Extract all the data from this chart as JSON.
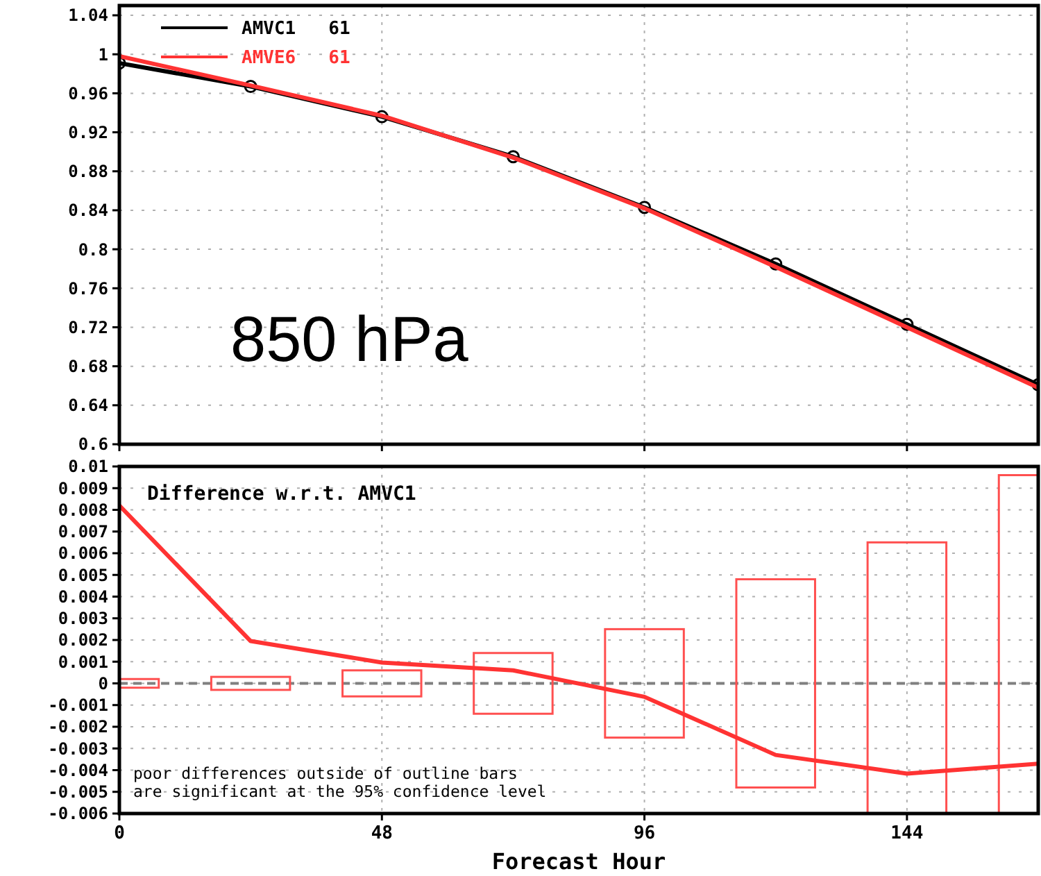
{
  "chart_data": [
    {
      "type": "line",
      "x": [
        0,
        24,
        48,
        72,
        96,
        120,
        144,
        168
      ],
      "xlim": [
        0,
        168
      ],
      "xticks": [
        0,
        48,
        96,
        144
      ],
      "tick_labels": "y",
      "ylim": [
        0.6,
        1.05
      ],
      "yticks": [
        0.6,
        0.64,
        0.68,
        0.72,
        0.76,
        0.8,
        0.84,
        0.88,
        0.92,
        0.96,
        1,
        1.04
      ],
      "grid": true,
      "legend": "top left",
      "line_style": "solid",
      "series": [
        {
          "name": "AMVC1   61",
          "color": "#000000",
          "marker": "circle",
          "values": [
            0.991,
            0.967,
            0.936,
            0.895,
            0.843,
            0.785,
            0.723,
            0.661
          ]
        },
        {
          "name": "AMVE6   61",
          "color": "#ff3333",
          "marker": "none",
          "values": [
            0.998,
            0.968,
            0.937,
            0.894,
            0.842,
            0.782,
            0.72,
            0.658
          ]
        }
      ],
      "annotations": [
        "850 hPa"
      ]
    },
    {
      "type": "bar",
      "x": [
        0,
        24,
        48,
        72,
        96,
        120,
        144,
        168
      ],
      "xlim": [
        0,
        168
      ],
      "xticks": [
        0,
        48,
        96,
        144
      ],
      "xlabel": "Forecast Hour",
      "ylim": [
        -0.006,
        0.01
      ],
      "yticks": [
        -0.006,
        -0.005,
        -0.004,
        -0.003,
        -0.002,
        -0.001,
        0,
        0.001,
        0.002,
        0.003,
        0.004,
        0.005,
        0.006,
        0.007,
        0.008,
        0.009,
        0.01
      ],
      "grid": true,
      "ref_lines": [
        {
          "axis": "y",
          "value": 0,
          "color": "#808080",
          "line_style": "dashed"
        }
      ],
      "series": [
        {
          "color": "#ff5050",
          "base": [
            -0.0002,
            -0.0003,
            -0.0006,
            -0.0014,
            -0.0025,
            -0.0048,
            -0.0065,
            -0.0096
          ],
          "values": [
            0.0004,
            0.0006,
            0.0012,
            0.0028,
            0.005,
            0.0096,
            0.013,
            0.0192
          ]
        },
        {
          "type": "line",
          "color": "#ff3333",
          "values": [
            0.0082,
            0.00195,
            0.00096,
            0.0006,
            -0.00062,
            -0.0033,
            -0.00416,
            -0.0037
          ]
        }
      ],
      "annotations": [
        "Difference w.r.t. AMVC1",
        "poor differences outside of outline bars\nare significant at the 95% confidence level"
      ]
    }
  ]
}
